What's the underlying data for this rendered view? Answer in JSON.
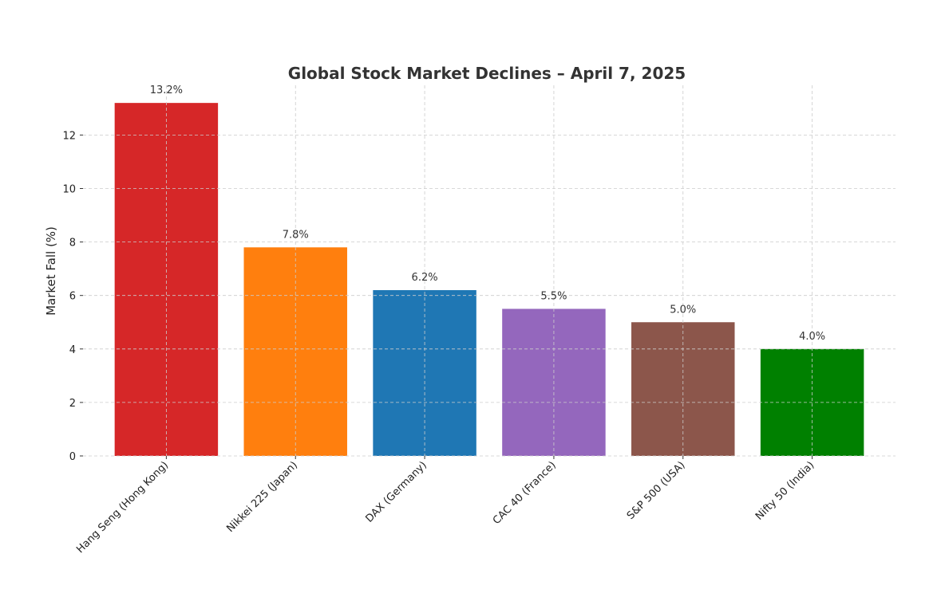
{
  "chart_data": {
    "type": "bar",
    "title": "Global Stock Market Declines – April 7, 2025",
    "xlabel": "",
    "ylabel": "Market Fall (%)",
    "categories": [
      "Hang Seng (Hong Kong)",
      "Nikkei 225 (Japan)",
      "DAX (Germany)",
      "CAC 40 (France)",
      "S&P 500 (USA)",
      "Nifty 50 (India)"
    ],
    "values": [
      13.2,
      7.8,
      6.2,
      5.5,
      5.0,
      4.0
    ],
    "data_labels": [
      "13.2%",
      "7.8%",
      "6.2%",
      "5.5%",
      "5.0%",
      "4.0%"
    ],
    "colors": [
      "#d62728",
      "#ff7f0e",
      "#1f77b4",
      "#9467bd",
      "#8c564b",
      "#008000"
    ],
    "yticks": [
      0,
      2,
      4,
      6,
      8,
      10,
      12
    ],
    "ylim": [
      0,
      13.86
    ],
    "grid": true
  }
}
